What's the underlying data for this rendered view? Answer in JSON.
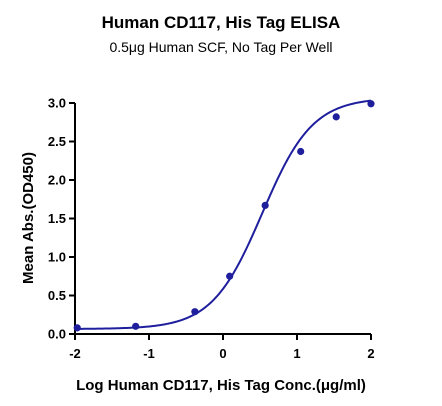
{
  "chart_data": {
    "type": "scatter",
    "title": "Human CD117, His Tag ELISA",
    "subtitle": "0.5μg Human SCF, No Tag Per Well",
    "xlabel": "Log Human CD117, His Tag Conc.(μg/ml)",
    "ylabel": "Mean Abs.(OD450)",
    "xlim": [
      -2,
      2
    ],
    "ylim": [
      0.0,
      3.0
    ],
    "xticks": [
      -2,
      -1,
      0,
      1,
      2
    ],
    "xtick_labels": [
      "-2",
      "-1",
      "0",
      "1",
      "2"
    ],
    "yticks": [
      0.0,
      0.5,
      1.0,
      1.5,
      2.0,
      2.5,
      3.0
    ],
    "ytick_labels": [
      "0.0",
      "0.5",
      "1.0",
      "1.5",
      "2.0",
      "2.5",
      "3.0"
    ],
    "grid": false,
    "series": [
      {
        "x": [
          -1.97,
          -1.18,
          -0.38,
          0.09,
          0.57,
          1.05,
          1.53,
          2.0
        ],
        "y": [
          0.08,
          0.1,
          0.29,
          0.75,
          1.67,
          2.37,
          2.82,
          2.99
        ],
        "color": "#1f1f9e",
        "fit": "4PL"
      }
    ],
    "fit_params": {
      "bottom": 0.065,
      "top": 3.07,
      "logEC50": 0.53,
      "hill": 1.28
    }
  }
}
